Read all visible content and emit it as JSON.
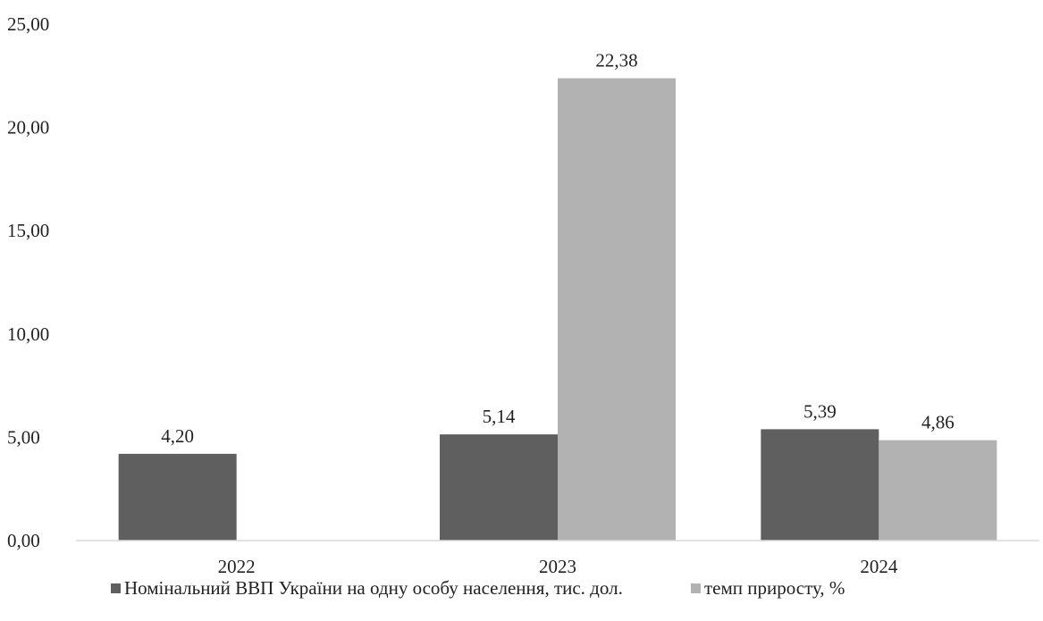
{
  "chart_data": {
    "type": "bar",
    "categories": [
      "2022",
      "2023",
      "2024"
    ],
    "series": [
      {
        "name": "Номінальний ВВП України на одну особу населення, тис. дол.",
        "values": [
          4.2,
          5.14,
          5.39
        ],
        "labels": [
          "4,20",
          "5,14",
          "5,39"
        ],
        "color": "#5f5f5f"
      },
      {
        "name": "темп приросту, %",
        "values": [
          null,
          22.38,
          4.86
        ],
        "labels": [
          null,
          "22,38",
          "4,86"
        ],
        "color": "#b2b2b2"
      }
    ],
    "ylim": [
      0,
      25
    ],
    "yticks": [
      "0,00",
      "5,00",
      "10,00",
      "15,00",
      "20,00",
      "25,00"
    ],
    "grid": false,
    "legend_position": "bottom"
  }
}
